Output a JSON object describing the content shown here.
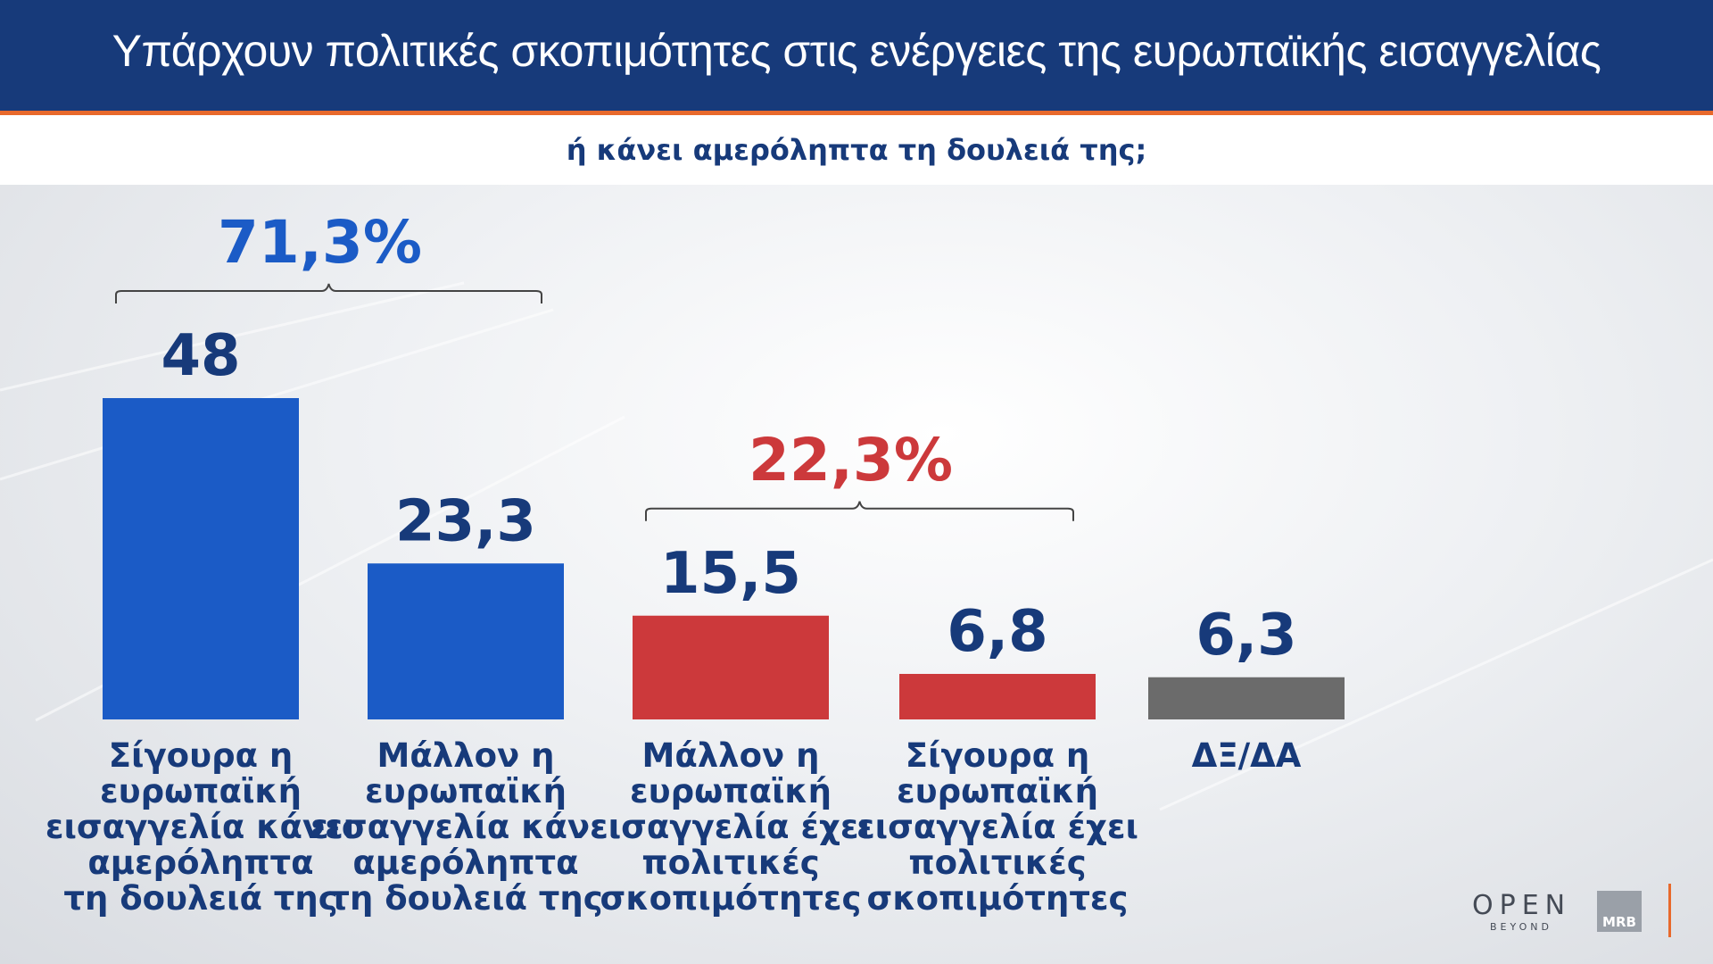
{
  "header": {
    "title": "Υπάρχουν πολιτικές σκοπιμότητες στις ενέργειες της ευρωπαϊκής εισαγγελίας",
    "subtitle": "ή κάνει αμερόληπτα τη δουλειά της;"
  },
  "chart_data": {
    "type": "bar",
    "categories": [
      "Σίγουρα η ευρωπαϊκή εισαγγελία κάνει αμερόληπτα τη δουλειά της",
      "Μάλλον η ευρωπαϊκή εισαγγελία κάνει αμερόληπτα τη δουλειά της",
      "Μάλλον η ευρωπαϊκή εισαγγελία έχει πολιτικές σκοπιμότητες",
      "Σίγουρα η ευρωπαϊκή εισαγγελία έχει πολιτικές σκοπιμότητες",
      "ΔΞ/ΔΑ"
    ],
    "category_lines": [
      [
        "Σίγουρα η",
        "ευρωπαϊκή",
        "εισαγγελία κάνει",
        "αμερόληπτα",
        "τη δουλειά της"
      ],
      [
        "Μάλλον η",
        "ευρωπαϊκή",
        "εισαγγελία κάνει",
        "αμερόληπτα",
        "τη δουλειά της"
      ],
      [
        "Μάλλον η",
        "ευρωπαϊκή",
        "εισαγγελία έχει",
        "πολιτικές",
        "σκοπιμότητες"
      ],
      [
        "Σίγουρα η",
        "ευρωπαϊκή",
        "εισαγγελία έχει",
        "πολιτικές",
        "σκοπιμότητες"
      ],
      [
        "ΔΞ/ΔΑ"
      ]
    ],
    "values": [
      48,
      23.3,
      15.5,
      6.8,
      6.3
    ],
    "value_labels": [
      "48",
      "23,3",
      "15,5",
      "6,8",
      "6,3"
    ],
    "bar_colors": [
      "#1b5bc6",
      "#1b5bc6",
      "#cc393b",
      "#cc393b",
      "#6b6b6b"
    ],
    "value_label_color": "#173a7a",
    "groups": [
      {
        "label": "71,3%",
        "from": 0,
        "to": 1,
        "color": "#1b5bc6"
      },
      {
        "label": "22,3%",
        "from": 2,
        "to": 3,
        "color": "#cc393b"
      }
    ],
    "ylim": [
      0,
      50
    ],
    "grid": false,
    "legend": "none"
  },
  "logos": {
    "open_main": "OPEN",
    "open_sub": "BEYOND",
    "mrb": "MRB"
  },
  "colors": {
    "title_bg": "#173a7a",
    "accent": "#e8692c",
    "subtitle_text": "#173a7a"
  }
}
